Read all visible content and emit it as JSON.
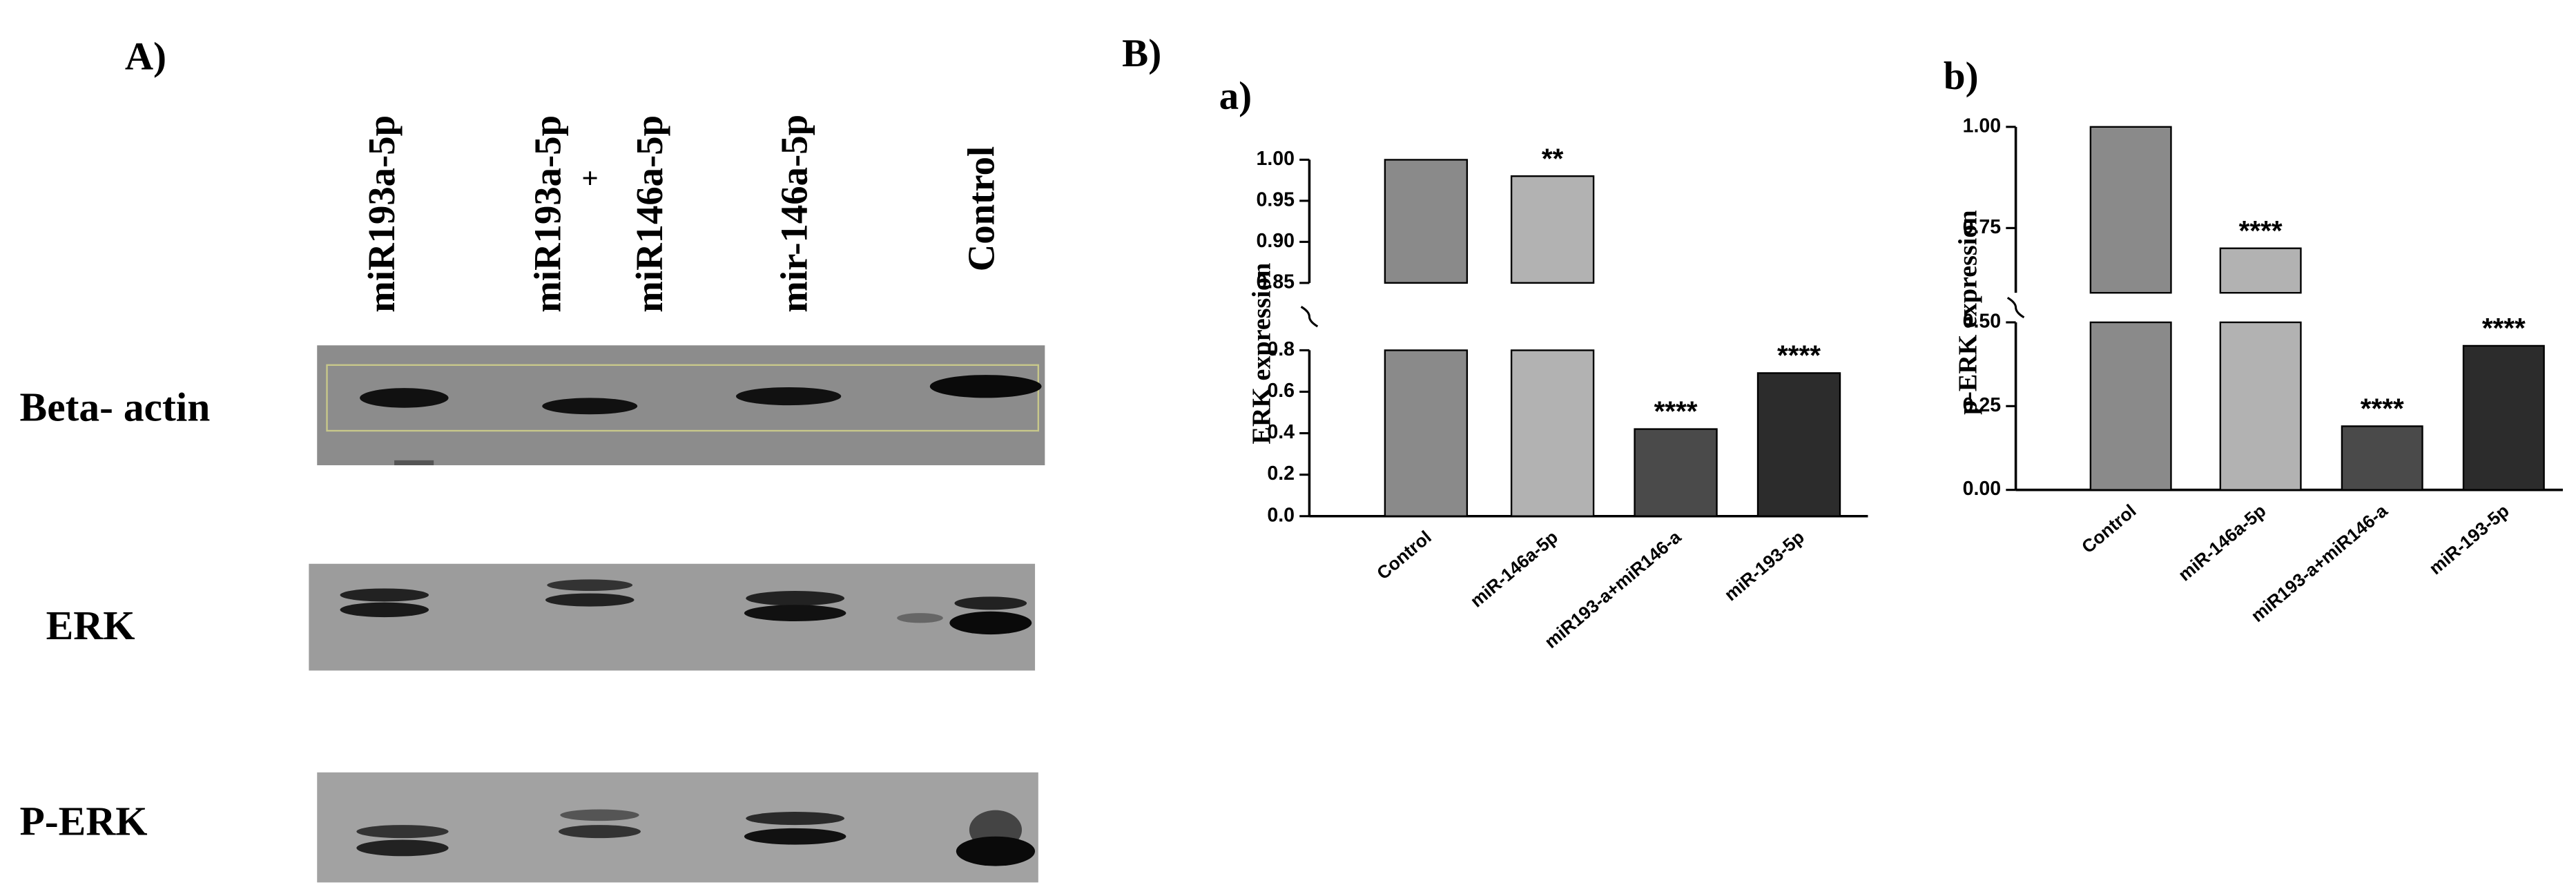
{
  "panel_a": {
    "label": "A)",
    "lanes": [
      "miR193a-5p",
      "miR193a-5p",
      "+",
      "miR146a-5p",
      "mir-146a-5p",
      "Control"
    ],
    "rows": [
      "Beta- actin",
      "ERK",
      "P-ERK"
    ]
  },
  "panel_b_label": "B)",
  "chart_data": [
    {
      "type": "bar",
      "panel_label": "a)",
      "y_label": "ERK expression",
      "categories": [
        "Control",
        "miR-146a-5p",
        "miR193-a+miR146-a",
        "miR-193-5p"
      ],
      "values": [
        1.0,
        0.98,
        0.42,
        0.69
      ],
      "annotations": [
        null,
        "**",
        "****",
        "****"
      ],
      "colors": [
        "#8a8a8a",
        "#b2b2b2",
        "#4a4a4a",
        "#2c2c2c"
      ],
      "ylim": [
        0,
        1
      ],
      "ybreak": [
        0.8,
        0.85
      ],
      "yticks": [
        {
          "value": 0,
          "label": "0.0"
        },
        0.2,
        0.4,
        0.6,
        0.8,
        0.85,
        {
          "value": 0.9,
          "label": "0.90"
        },
        0.95,
        {
          "value": 1,
          "label": "1.00"
        }
      ]
    },
    {
      "type": "bar",
      "panel_label": "b)",
      "y_label": "p-ERK expression",
      "categories": [
        "Control",
        "miR-146a-5p",
        "miR193-a+miR146-a",
        "miR-193-5p"
      ],
      "values": [
        1.0,
        0.7,
        0.19,
        0.43
      ],
      "annotations": [
        null,
        "****",
        "****",
        "****"
      ],
      "colors": [
        "#8a8a8a",
        "#b2b2b2",
        "#4a4a4a",
        "#2c2c2c"
      ],
      "ylim": [
        0,
        1
      ],
      "ybreak": [
        0.5,
        0.59
      ],
      "yticks": [
        {
          "value": 0,
          "label": "0.00"
        },
        0.25,
        {
          "value": 0.5,
          "label": "0.50"
        },
        0.75,
        {
          "value": 1,
          "label": "1.00"
        }
      ]
    }
  ]
}
